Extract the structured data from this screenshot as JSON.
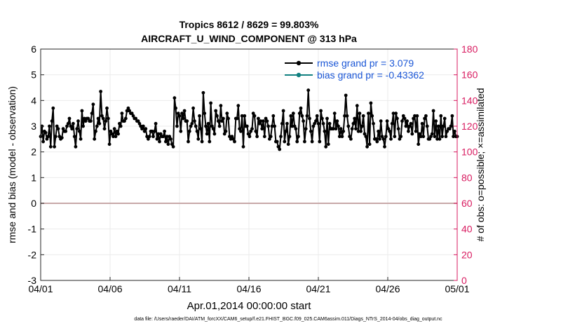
{
  "chart_data": {
    "type": "line",
    "title_line1": "Tropics 8612 / 8629 = 99.803%",
    "title_line2": "AIRCRAFT_U_WIND_COMPONENT @ 313 hPa",
    "xlabel": "Apr.01,2014 00:00:00 start",
    "ylabel_left": "rmse and bias (model - observation)",
    "ylabel_right": "# of obs: o=possible; ×=assimilated",
    "footer": "data file: /Users/raeder/DAI/ATM_forcXX/CAM6_setup/f.e21.FHIST_BGC.f09_025.CAM6assim.011/Diags_NTrS_2014-04/obs_diag_output.nc",
    "xlim": [
      0,
      30
    ],
    "ylim_left": [
      -3,
      6
    ],
    "ylim_right": [
      0,
      180
    ],
    "x_ticks": [
      0,
      5,
      10,
      15,
      20,
      25,
      30
    ],
    "x_tick_labels": [
      "04/01",
      "04/06",
      "04/11",
      "04/16",
      "04/21",
      "04/26",
      "05/01"
    ],
    "yl_ticks": [
      -3,
      -2,
      -1,
      0,
      1,
      2,
      3,
      4,
      5,
      6
    ],
    "yl_tick_labels": [
      "-3",
      "-2",
      "-1",
      "0",
      "1",
      "2",
      "3",
      "4",
      "5",
      "6"
    ],
    "yr_ticks": [
      0,
      20,
      40,
      60,
      80,
      100,
      120,
      140,
      160,
      180
    ],
    "yr_tick_labels": [
      "0",
      "20",
      "40",
      "60",
      "80",
      "100",
      "120",
      "140",
      "160",
      "180"
    ],
    "colors": {
      "rmse": "#000000",
      "bias": "#118080",
      "obs": "#d81b60",
      "right_axis": "#d81b60",
      "legend_text": "#1a56d6",
      "zero_line": "#c8a8a8",
      "grid": "#ebebeb"
    },
    "legend": {
      "position": "top-right",
      "entries": [
        "rmse grand pr = 3.079",
        "bias grand pr = -0.43362"
      ]
    },
    "series": [
      {
        "name": "rmse",
        "axis": "left",
        "values": [
          2.6,
          3.0,
          2.4,
          2.8,
          2.75,
          2.5,
          2.6,
          3.0,
          2.2,
          3.2,
          3.7,
          2.2,
          2.6,
          3.0,
          2.9,
          2.6,
          2.5,
          2.55,
          2.9,
          2.8,
          2.8,
          3.0,
          3.1,
          3.3,
          3.0,
          2.9,
          3.1,
          2.6,
          2.2,
          2.9,
          3.2,
          2.8,
          2.5,
          3.6,
          3.0,
          3.3,
          3.2,
          3.3,
          3.3,
          3.2,
          3.2,
          3.5,
          3.85,
          2.5,
          2.8,
          3.0,
          3.3,
          3.1,
          4.35,
          3.4,
          3.3,
          2.9,
          3.2,
          3.7,
          3.3,
          2.3,
          2.8,
          2.7,
          2.6,
          2.9,
          2.6,
          2.8,
          2.7,
          3.1,
          3.0,
          3.5,
          3.2,
          3.2,
          3.3,
          3.6,
          3.7,
          3.6,
          3.5,
          3.5,
          3.4,
          3.3,
          3.3,
          3.2,
          3.2,
          3.1,
          3.0,
          2.9,
          3.0,
          2.8,
          2.9,
          2.6,
          2.5,
          2.6,
          2.8,
          2.8,
          2.6,
          2.8,
          3.1,
          2.5,
          2.7,
          2.4,
          2.7,
          2.6,
          2.6,
          2.8,
          2.4,
          2.6,
          2.3,
          2.6,
          2.5,
          2.3,
          2.2,
          4.1,
          3.7,
          3.0,
          3.5,
          3.4,
          2.8,
          3.5,
          3.3,
          3.6,
          3.2,
          3.2,
          2.4,
          2.8,
          3.0,
          3.1,
          3.7,
          3.2,
          3.0,
          2.8,
          2.5,
          3.4,
          2.9,
          2.4,
          4.3,
          3.5,
          3.0,
          2.7,
          3.1,
          2.4,
          3.9,
          3.0,
          2.9,
          2.7,
          3.6,
          3.4,
          3.2,
          3.0,
          3.8,
          3.2,
          3.3,
          2.7,
          2.8,
          3.5,
          3.3,
          2.6,
          2.5,
          2.6,
          2.5,
          2.4,
          3.3,
          3.3,
          3.8,
          2.9,
          2.8,
          3.4,
          2.2,
          3.4,
          3.0,
          3.0,
          2.7,
          2.6,
          2.8,
          2.9,
          3.5,
          3.4,
          2.8,
          2.6,
          3.3,
          3.1,
          3.2,
          2.9,
          3.2,
          2.6,
          3.3,
          3.2,
          3.0,
          2.5,
          2.6,
          3.0,
          3.4,
          3.0,
          2.4,
          2.4,
          2.2,
          2.1,
          2.6,
          3.1,
          3.6,
          2.4,
          2.8,
          3.1,
          2.3,
          2.6,
          3.4,
          3.0,
          3.5,
          3.0,
          2.9,
          2.4,
          2.6,
          3.5,
          3.7,
          3.4,
          3.2,
          2.4,
          2.9,
          3.4,
          4.4,
          3.3,
          2.8,
          2.4,
          3.0,
          3.1,
          3.2,
          3.4,
          3.1,
          2.4,
          3.6,
          3.3,
          3.1,
          2.8,
          2.2,
          3.3,
          2.3,
          3.1,
          2.9,
          2.9,
          2.9,
          3.5,
          2.9,
          3.2,
          3.0,
          2.6,
          2.9,
          2.6,
          2.8,
          3.4,
          4.2,
          3.4,
          3.0,
          2.6,
          2.5,
          2.9,
          3.1,
          3.3,
          2.9,
          3.8,
          2.8,
          3.5,
          2.8,
          3.0,
          3.4,
          2.7,
          2.6,
          2.2,
          3.5,
          2.3,
          3.9,
          3.4,
          3.1,
          2.5,
          2.5,
          2.4,
          2.8,
          2.5,
          3.2,
          2.6,
          2.5,
          2.2,
          2.6,
          3.2,
          2.9,
          2.8,
          2.5,
          3.1,
          3.5,
          2.6,
          3.5,
          3.3,
          2.9,
          2.5,
          2.6,
          3.2,
          3.4,
          3.3,
          3.0,
          3.2,
          2.8,
          3.0,
          3.1,
          2.7,
          3.3,
          3.4,
          2.8,
          3.4,
          2.3,
          2.7,
          2.6,
          3.1,
          2.6,
          3.3,
          3.4,
          3.0,
          2.5,
          2.5,
          2.6,
          2.7,
          3.6,
          2.6,
          3.2,
          2.5,
          3.0,
          2.5,
          3.4,
          2.6,
          3.0,
          3.3,
          2.6,
          2.8,
          2.9,
          2.9,
          3.0,
          3.4,
          2.6,
          2.8,
          2.6,
          2.6
        ]
      }
    ]
  }
}
